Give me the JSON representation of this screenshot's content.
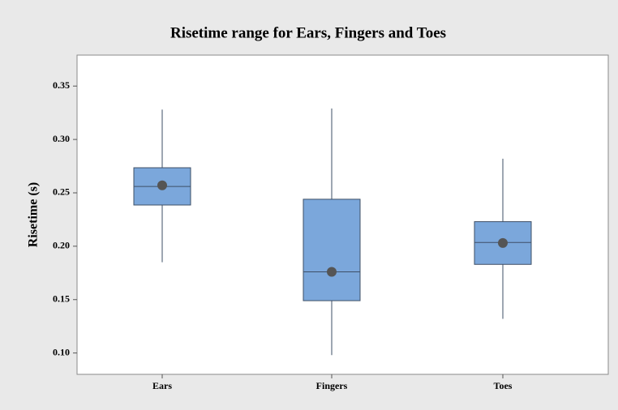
{
  "chart_data": {
    "type": "box",
    "title": "Risetime range for Ears, Fingers and Toes",
    "y_label": "Risetime (s)",
    "categories": [
      "Ears",
      "Fingers",
      "Toes"
    ],
    "boxes": [
      {
        "min": 0.185,
        "q1": 0.2386,
        "median": 0.256,
        "q3": 0.2735,
        "max": 0.328,
        "mean": 0.257
      },
      {
        "min": 0.098,
        "q1": 0.149,
        "median": 0.176,
        "q3": 0.244,
        "max": 0.329,
        "mean": 0.176
      },
      {
        "min": 0.132,
        "q1": 0.183,
        "median": 0.2035,
        "q3": 0.223,
        "max": 0.282,
        "mean": 0.203
      }
    ],
    "color": "#7ba7db",
    "edge_color": "#3e4f66",
    "mean_color": "#555555",
    "ylim": [
      0.08,
      0.379
    ],
    "yticks": [
      {
        "value": 0.1,
        "label": "0.10"
      },
      {
        "value": 0.15,
        "label": "0.15"
      },
      {
        "value": 0.2,
        "label": "0.20"
      },
      {
        "value": 0.25,
        "label": "0.25"
      },
      {
        "value": 0.3,
        "label": "0.30"
      },
      {
        "value": 0.35,
        "label": "0.35"
      }
    ]
  }
}
